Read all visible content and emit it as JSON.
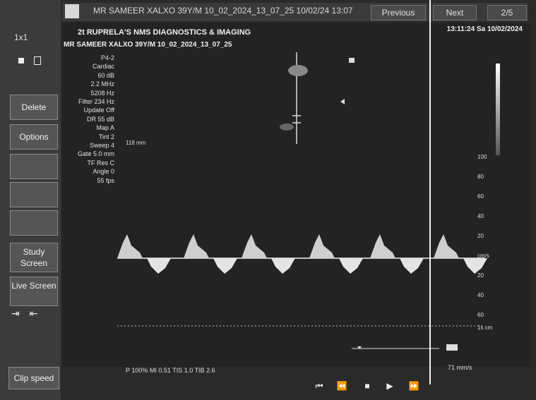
{
  "header": {
    "patient_title": "MR SAMEER XALXO 39Y/M   10_02_2024_13_07_25   10/02/24 13:07",
    "previous_label": "Previous",
    "next_label": "Next",
    "page_counter": "2/5"
  },
  "sidebar": {
    "layout_label": "1x1",
    "delete_label": "Delete",
    "options_label": "Options",
    "study_screen_label": "Study Screen",
    "live_screen_label": "Live Screen",
    "clip_speed_label": "Clip speed"
  },
  "image": {
    "clinic_name": "2t RUPRELA'S NMS DIAGNOSTICS & IMAGING",
    "patient_sub": "MR SAMEER XALXO 39Y/M      10_02_2024_13_07_25",
    "clock": "13:11:24  Sa  10/02/2024",
    "params": [
      "P4-2",
      "Cardiac",
      "60 dB",
      "2.2 MHz",
      "5208 Hz",
      "Filter 234 Hz",
      "Update Off",
      "DR 55 dB",
      "Map A",
      "Tint 2",
      "Sweep 4",
      "Gate 5.0 mm",
      "TF Res C",
      "Angle 0",
      "55 fps"
    ],
    "depth_label": "118 mm",
    "velocity_scale": [
      "100",
      "80",
      "60",
      "40",
      "20",
      "cm/s",
      "20",
      "40",
      "60",
      "1s cm"
    ],
    "bottom_readout": "P 100%     MI 0.51        TIS 1.0    TIB 2.6",
    "sweep_speed": "71 mm/s",
    "marker_right": "1"
  },
  "playback": {
    "icons": [
      "skip-start-icon",
      "rewind-icon",
      "stop-icon",
      "play-icon",
      "fast-forward-icon"
    ]
  }
}
